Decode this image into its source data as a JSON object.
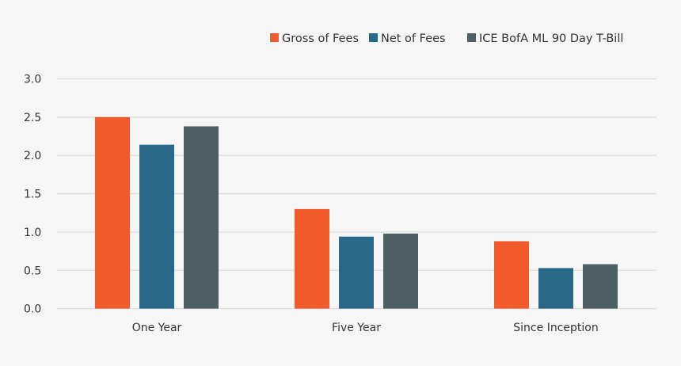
{
  "chart_data": {
    "type": "bar",
    "title": "",
    "xlabel": "",
    "ylabel": "",
    "ylim": [
      0,
      3.0
    ],
    "yticks": [
      "0.0",
      "0.5",
      "1.0",
      "1.5",
      "2.0",
      "2.5",
      "3.0"
    ],
    "grid": true,
    "legend_position": "top-right",
    "categories": [
      "One Year",
      "Five Year",
      "Since Inception"
    ],
    "series": [
      {
        "name": "Gross of Fees",
        "color": "#F15A2A",
        "values": [
          2.5,
          1.3,
          0.88
        ]
      },
      {
        "name": "Net of Fees",
        "color": "#2A6889",
        "values": [
          2.14,
          0.94,
          0.53
        ]
      },
      {
        "name": "ICE BofA ML 90 Day T-Bill",
        "color": "#4F6064",
        "values": [
          2.38,
          0.98,
          0.58
        ]
      }
    ]
  }
}
